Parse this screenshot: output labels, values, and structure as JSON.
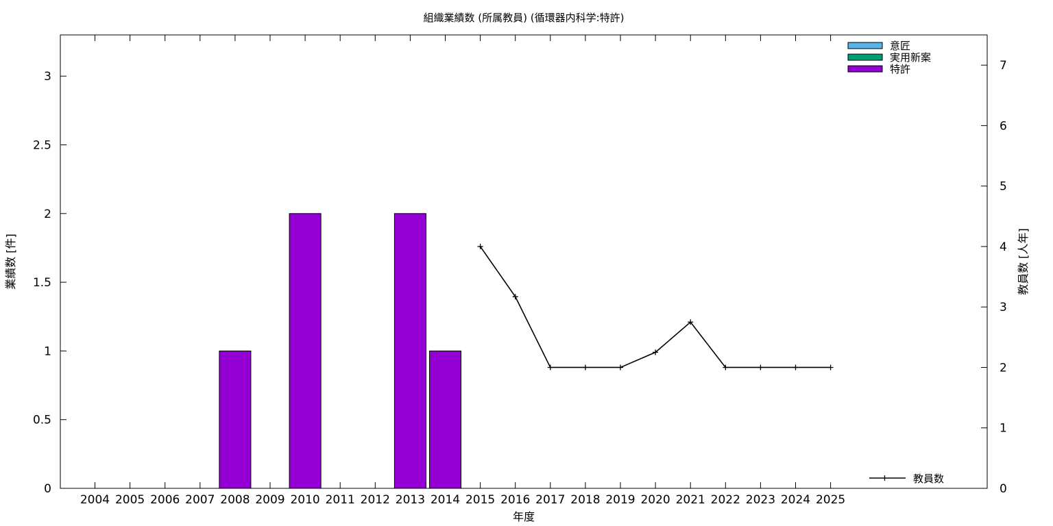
{
  "chart_data": {
    "type": "bar",
    "title": "組織業績数 (所属教員) (循環器内科学:特許)",
    "xlabel": "年度",
    "ylabel": "業績数 [件]",
    "y2label": "教員数 [人年]",
    "ylim": [
      0,
      3.3
    ],
    "y2lim": [
      0,
      7.5
    ],
    "yticks": [
      "0",
      "0.5",
      "1",
      "1.5",
      "2",
      "2.5",
      "3"
    ],
    "y2ticks": [
      "0",
      "1",
      "2",
      "3",
      "4",
      "5",
      "6",
      "7"
    ],
    "legend_position": "top-right",
    "categories": [
      "2004",
      "2005",
      "2006",
      "2007",
      "2008",
      "2009",
      "2010",
      "2011",
      "2012",
      "2013",
      "2014",
      "2015",
      "2016",
      "2017",
      "2018",
      "2019",
      "2020",
      "2021",
      "2022",
      "2023",
      "2024",
      "2025"
    ],
    "series": [
      {
        "name": "意匠",
        "kind": "bar",
        "color": "#56b4e9",
        "values": [
          0,
          0,
          0,
          0,
          0,
          0,
          0,
          0,
          0,
          0,
          0,
          0,
          0,
          0,
          0,
          0,
          0,
          0,
          0,
          0,
          0,
          0
        ]
      },
      {
        "name": "実用新案",
        "kind": "bar",
        "color": "#009e73",
        "values": [
          0,
          0,
          0,
          0,
          0,
          0,
          0,
          0,
          0,
          0,
          0,
          0,
          0,
          0,
          0,
          0,
          0,
          0,
          0,
          0,
          0,
          0
        ]
      },
      {
        "name": "特許",
        "kind": "bar",
        "color": "#9400d3",
        "values": [
          0,
          0,
          0,
          0,
          1,
          0,
          2,
          0,
          0,
          2,
          1,
          0,
          0,
          0,
          0,
          0,
          0,
          0,
          0,
          0,
          0,
          0
        ]
      },
      {
        "name": "教員数",
        "kind": "line",
        "axis": "y2",
        "color": "#000000",
        "values": [
          null,
          null,
          null,
          null,
          null,
          null,
          null,
          null,
          null,
          null,
          null,
          4,
          3.17,
          2,
          2,
          2,
          2.25,
          2.75,
          2,
          2,
          2,
          2
        ]
      }
    ]
  }
}
